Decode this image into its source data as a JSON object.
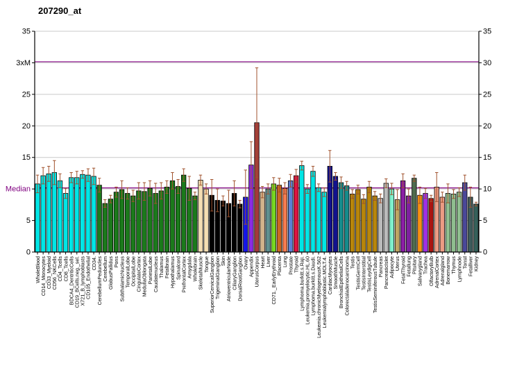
{
  "page": {
    "title": "207290_at"
  },
  "chart_data": {
    "type": "bar",
    "title": "207290_at",
    "xlabel": "",
    "ylabel": "",
    "ylim": [
      0,
      35
    ],
    "ytick_step": 5,
    "grid": true,
    "grid_color": "#C9C9C9",
    "axis_color": "#000000",
    "error_bar_color": "#A0522D",
    "left_axis_tick_labels": [
      "0",
      "5",
      "Median",
      "15",
      "20",
      "25",
      "3xM",
      "35"
    ],
    "right_axis_tick_labels": [
      "0",
      "5",
      "10",
      "15",
      "20",
      "25",
      "30",
      "35"
    ],
    "reference_lines": [
      {
        "name": "3xM",
        "value": 30,
        "color": "#800080"
      },
      {
        "name": "Median",
        "value": 10,
        "color": "#800080"
      }
    ],
    "bars": [
      {
        "label": "WholeBlood",
        "value": 10.8,
        "error_high": 12.2,
        "color": "#00E6E6"
      },
      {
        "label": "CD14_Monocytes",
        "value": 12.1,
        "error_high": 13.4,
        "color": "#00E6E6"
      },
      {
        "label": "CD33_Myeloid",
        "value": 12.4,
        "error_high": 13.6,
        "color": "#00E6E6"
      },
      {
        "label": "CD56_NKCells",
        "value": 12.6,
        "error_high": 14.5,
        "color": "#00E6E6"
      },
      {
        "label": "CD4_Tcells",
        "value": 11.3,
        "error_high": 12.4,
        "color": "#00E6E6"
      },
      {
        "label": "CD8_Tcells",
        "value": 9.3,
        "error_high": 10.1,
        "color": "#00E6E6"
      },
      {
        "label": "BDCA4_DentriticCells",
        "value": 11.8,
        "error_high": 12.6,
        "color": "#00E6E6"
      },
      {
        "label": "CD19_BCells.neg._sel.",
        "value": 11.8,
        "error_high": 12.8,
        "color": "#00E6E6"
      },
      {
        "label": "X721_B_lymphoblasts",
        "value": 12.3,
        "error_high": 12.9,
        "color": "#00E6E6"
      },
      {
        "label": "CD105_Endothelial",
        "value": 12.2,
        "error_high": 13.2,
        "color": "#00E6E6"
      },
      {
        "label": "CD34.",
        "value": 12.0,
        "error_high": 13.3,
        "color": "#00E6E6"
      },
      {
        "label": "CerebellumPeduncles",
        "value": 10.6,
        "error_high": 11.7,
        "color": "#1B7A1B"
      },
      {
        "label": "Cerebellum",
        "value": 7.7,
        "error_high": 8.3,
        "color": "#1B7A1B"
      },
      {
        "label": "GlobusPallidus",
        "value": 8.4,
        "error_high": 9.0,
        "color": "#1B7A1B"
      },
      {
        "label": "Pons",
        "value": 9.5,
        "error_high": 10.3,
        "color": "#1B7A1B"
      },
      {
        "label": "SubthalamicNucleus",
        "value": 9.9,
        "error_high": 11.3,
        "color": "#1B7A1B"
      },
      {
        "label": "TemporalLobe",
        "value": 9.3,
        "error_high": 10.2,
        "color": "#1B7A1B"
      },
      {
        "label": "OccipitalLobe",
        "value": 8.9,
        "error_high": 9.8,
        "color": "#1B7A1B"
      },
      {
        "label": "CingulateCortex",
        "value": 9.7,
        "error_high": 11.0,
        "color": "#1B7A1B"
      },
      {
        "label": "MedullaOblongata",
        "value": 9.6,
        "error_high": 11.0,
        "color": "#1B7A1B"
      },
      {
        "label": "ParietalLobe",
        "value": 10.1,
        "error_high": 11.3,
        "color": "#1B7A1B"
      },
      {
        "label": "Caudatenucleus",
        "value": 9.3,
        "error_high": 10.9,
        "color": "#1B7A1B"
      },
      {
        "label": "Thalamus",
        "value": 9.7,
        "error_high": 11.0,
        "color": "#1B7A1B"
      },
      {
        "label": "Fetalbrain",
        "value": 10.3,
        "error_high": 11.3,
        "color": "#1B7A1B"
      },
      {
        "label": "Hypothalamus",
        "value": 11.3,
        "error_high": 12.6,
        "color": "#1B7A1B"
      },
      {
        "label": "Spinalcord",
        "value": 10.4,
        "error_high": 11.5,
        "color": "#1B7A1B"
      },
      {
        "label": "PrefrontalCortex",
        "value": 12.2,
        "error_high": 13.2,
        "color": "#1B7A1B"
      },
      {
        "label": "Amygdala",
        "value": 10.1,
        "error_high": 12.0,
        "color": "#1B7A1B"
      },
      {
        "label": "Wholebrain",
        "value": 8.9,
        "error_high": 9.5,
        "color": "#1B7A1B"
      },
      {
        "label": "SkeletalMuscle",
        "value": 11.4,
        "error_high": 12.2,
        "color": "#F5DEB3"
      },
      {
        "label": "Tongue",
        "value": 10.0,
        "error_high": 10.8,
        "color": "#F5DEB3"
      },
      {
        "label": "SuperiorCervicalGanglion",
        "value": 9.0,
        "error_high": 11.5,
        "color": "#000000"
      },
      {
        "label": "TrigeminalGanglion",
        "value": 8.2,
        "error_high": 10.0,
        "color": "#000000"
      },
      {
        "label": "Skin",
        "value": 8.1,
        "error_high": 8.9,
        "color": "#000000"
      },
      {
        "label": "AtrioventricularNode",
        "value": 7.7,
        "error_high": 9.8,
        "color": "#000000"
      },
      {
        "label": "CiliaryGanglion",
        "value": 9.3,
        "error_high": 11.3,
        "color": "#000000"
      },
      {
        "label": "DorsalRootGanglion",
        "value": 7.6,
        "error_high": 8.2,
        "color": "#000000"
      },
      {
        "label": "Ovary",
        "value": 8.7,
        "error_high": 13.0,
        "color": "#1616E8"
      },
      {
        "label": "Appendix",
        "value": 13.8,
        "error_high": 17.5,
        "color": "#8A2BE2"
      },
      {
        "label": "UterusCorpus",
        "value": 20.5,
        "error_high": 29.2,
        "color": "#A33A3A"
      },
      {
        "label": "Heart",
        "value": 9.5,
        "error_high": 10.4,
        "color": "#D2B48C"
      },
      {
        "label": "Liver",
        "value": 10.0,
        "error_high": 10.8,
        "color": "#5F9090"
      },
      {
        "label": "CD71._EarlyErythroid",
        "value": 10.8,
        "error_high": 11.8,
        "color": "#77D622"
      },
      {
        "label": "Placenta",
        "value": 10.6,
        "error_high": 11.7,
        "color": "#CC6820"
      },
      {
        "label": "Lung",
        "value": 10.1,
        "error_high": 11.0,
        "color": "#F47B50"
      },
      {
        "label": "Prostate",
        "value": 11.3,
        "error_high": 12.3,
        "color": "#5C80D6"
      },
      {
        "label": "Thyroid",
        "value": 12.1,
        "error_high": 13.1,
        "color": "#DC1440"
      },
      {
        "label": "Lymphoma.burkitt.s.Raji.",
        "value": 13.7,
        "error_high": 14.4,
        "color": "#00E6E6"
      },
      {
        "label": "Leukemia.promyelocytic.HL.60",
        "value": 10.0,
        "error_high": 10.7,
        "color": "#00E6E6"
      },
      {
        "label": "Lymphoma.burkitt.s.Daudi.",
        "value": 12.8,
        "error_high": 13.6,
        "color": "#00E6E6"
      },
      {
        "label": "Leukemia.chronicMyelogenousK.562",
        "value": 10.2,
        "error_high": 10.8,
        "color": "#00E6E6"
      },
      {
        "label": "Leukemialymphoblastic.MOLT.4.",
        "value": 9.5,
        "error_high": 10.2,
        "color": "#00E6E6"
      },
      {
        "label": "CardiacMyocytes",
        "value": 13.6,
        "error_high": 16.1,
        "color": "#12128F"
      },
      {
        "label": "SmoothMuscle",
        "value": 12.0,
        "error_high": 12.6,
        "color": "#12128F"
      },
      {
        "label": "BronchialEpithelialCells",
        "value": 11.0,
        "error_high": 11.9,
        "color": "#168C8C"
      },
      {
        "label": "Colorectaladenocarcinoma",
        "value": 10.5,
        "error_high": 11.2,
        "color": "#168C8C"
      },
      {
        "label": "Testis",
        "value": 9.2,
        "error_high": 9.9,
        "color": "#B8860B"
      },
      {
        "label": "TestisGermCell",
        "value": 9.9,
        "error_high": 10.6,
        "color": "#B8860B"
      },
      {
        "label": "TestisInterstitial",
        "value": 8.4,
        "error_high": 9.1,
        "color": "#B8860B"
      },
      {
        "label": "TestisLeydigCell",
        "value": 10.3,
        "error_high": 11.2,
        "color": "#B8860B"
      },
      {
        "label": "TestisSeminiferousTubule",
        "value": 8.9,
        "error_high": 9.6,
        "color": "#B8860B"
      },
      {
        "label": "Pancreas",
        "value": 8.5,
        "error_high": 9.2,
        "color": "#BBBBBB"
      },
      {
        "label": "PancreaticIslet",
        "value": 10.9,
        "error_high": 11.6,
        "color": "#BBBBBB"
      },
      {
        "label": "Adipocyte",
        "value": 10.0,
        "error_high": 10.9,
        "color": "#7FF0CC"
      },
      {
        "label": "Uterus",
        "value": 8.3,
        "error_high": 9.9,
        "color": "#BFA764"
      },
      {
        "label": "FetalThyroid",
        "value": 11.3,
        "error_high": 12.4,
        "color": "#8B1FA5"
      },
      {
        "label": "Fetallung",
        "value": 8.9,
        "error_high": 10.0,
        "color": "#7E22A0"
      },
      {
        "label": "Pituitary",
        "value": 11.7,
        "error_high": 12.2,
        "color": "#4E6B4E"
      },
      {
        "label": "Salivarygland",
        "value": 9.0,
        "error_high": 10.3,
        "color": "#F89010"
      },
      {
        "label": "Trachea",
        "value": 9.3,
        "error_high": 10.1,
        "color": "#A030E8"
      },
      {
        "label": "OlfactoryBulb",
        "value": 8.5,
        "error_high": 9.0,
        "color": "#AA1510"
      },
      {
        "label": "AdrenalCortex",
        "value": 10.3,
        "error_high": 12.6,
        "color": "#EC9C84"
      },
      {
        "label": "Adrenalgland",
        "value": 8.7,
        "error_high": 9.5,
        "color": "#EC9C84"
      },
      {
        "label": "Bonemarrow",
        "value": 9.3,
        "error_high": 10.8,
        "color": "#8FBE8F"
      },
      {
        "label": "Thymus",
        "value": 9.2,
        "error_high": 9.9,
        "color": "#8FBE8F"
      },
      {
        "label": "Lymphnode",
        "value": 9.5,
        "error_high": 10.2,
        "color": "#8FBE8F"
      },
      {
        "label": "Tonsil",
        "value": 11.0,
        "error_high": 12.2,
        "color": "#4A4899"
      },
      {
        "label": "Fetalliver",
        "value": 8.7,
        "error_high": 10.3,
        "color": "#3D5C5C"
      },
      {
        "label": "Kidney",
        "value": 7.6,
        "error_high": 7.9,
        "color": "#35605A"
      }
    ]
  }
}
